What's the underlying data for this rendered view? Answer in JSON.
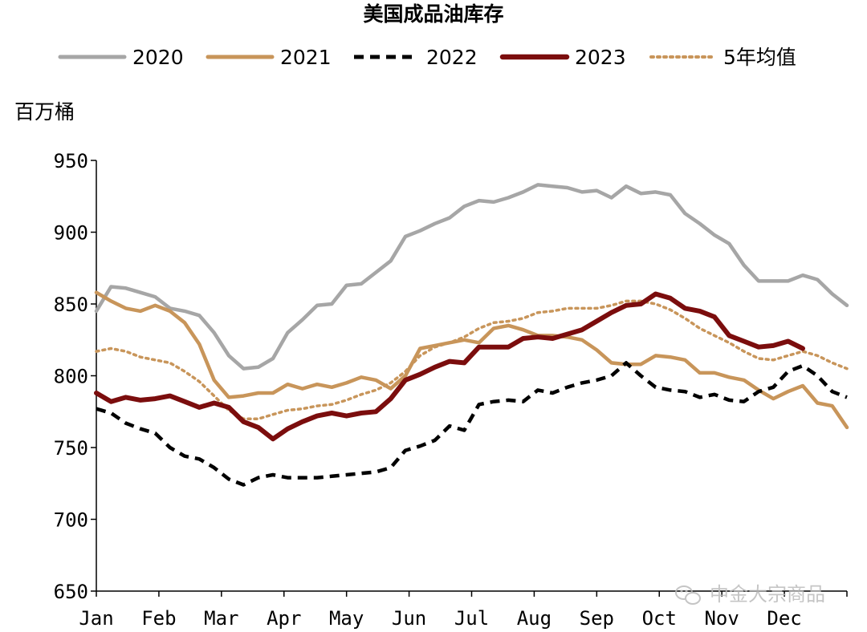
{
  "chart_data": {
    "type": "line",
    "title": "美国成品油库存",
    "ylabel": "百万桶",
    "ylim": [
      650,
      950
    ],
    "yticks": [
      650,
      700,
      750,
      800,
      850,
      900,
      950
    ],
    "months": [
      "Jan",
      "Feb",
      "Mar",
      "Apr",
      "May",
      "Jun",
      "Jul",
      "Aug",
      "Sep",
      "Oct",
      "Nov",
      "Dec"
    ],
    "x_unit": "week",
    "grid": false,
    "legend_position": "top",
    "series": [
      {
        "name": "2020",
        "color": "#a6a6a6",
        "style": "solid",
        "values": [
          845,
          862,
          861,
          858,
          855,
          847,
          845,
          842,
          830,
          814,
          805,
          806,
          812,
          830,
          839,
          849,
          850,
          863,
          864,
          872,
          880,
          897,
          901,
          906,
          910,
          918,
          922,
          921,
          924,
          928,
          933,
          932,
          931,
          928,
          929,
          924,
          932,
          927,
          928,
          926,
          913,
          906,
          898,
          892,
          877,
          866,
          866,
          866,
          870,
          867,
          857,
          849
        ]
      },
      {
        "name": "2021",
        "color": "#c8955a",
        "style": "solid",
        "values": [
          858,
          852,
          847,
          845,
          849,
          845,
          837,
          822,
          797,
          785,
          786,
          788,
          788,
          794,
          791,
          794,
          792,
          795,
          799,
          797,
          791,
          800,
          819,
          821,
          823,
          825,
          823,
          833,
          835,
          832,
          828,
          828,
          827,
          825,
          818,
          809,
          808,
          808,
          814,
          813,
          811,
          802,
          802,
          799,
          797,
          790,
          784,
          789,
          793,
          781,
          779,
          764
        ]
      },
      {
        "name": "2022",
        "color": "#000000",
        "style": "dash",
        "values": [
          777,
          774,
          767,
          763,
          760,
          750,
          744,
          742,
          736,
          728,
          724,
          729,
          731,
          729,
          729,
          729,
          730,
          731,
          732,
          733,
          736,
          748,
          751,
          755,
          765,
          762,
          780,
          782,
          783,
          782,
          790,
          788,
          792,
          795,
          797,
          800,
          809,
          800,
          792,
          790,
          789,
          785,
          787,
          783,
          782,
          789,
          792,
          803,
          807,
          800,
          789,
          785
        ]
      },
      {
        "name": "2023",
        "color": "#7b0d0d",
        "style": "solid-thick",
        "values": [
          788,
          782,
          785,
          783,
          784,
          786,
          782,
          778,
          781,
          778,
          768,
          764,
          756,
          763,
          768,
          772,
          774,
          772,
          774,
          775,
          784,
          797,
          801,
          806,
          810,
          809,
          820,
          820,
          820,
          826,
          827,
          826,
          829,
          832,
          838,
          844,
          849,
          850,
          857,
          854,
          847,
          845,
          841,
          828,
          824,
          820,
          821,
          824,
          819
        ]
      },
      {
        "name": "5年均值",
        "color": "#c8955a",
        "style": "dot",
        "values": [
          817,
          819,
          817,
          813,
          811,
          809,
          803,
          796,
          786,
          776,
          770,
          770,
          773,
          776,
          777,
          779,
          780,
          783,
          787,
          790,
          795,
          803,
          814,
          820,
          823,
          827,
          833,
          837,
          838,
          840,
          844,
          845,
          847,
          847,
          847,
          849,
          852,
          852,
          850,
          846,
          840,
          833,
          828,
          823,
          817,
          812,
          811,
          814,
          817,
          814,
          809,
          805
        ]
      }
    ]
  },
  "watermark": {
    "icon": "wechat-icon",
    "text": "中金大宗商品"
  }
}
